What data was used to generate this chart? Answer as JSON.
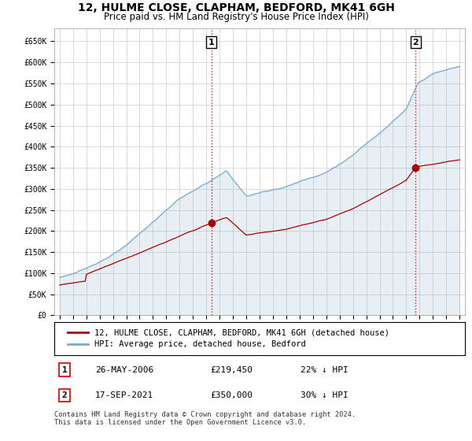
{
  "title": "12, HULME CLOSE, CLAPHAM, BEDFORD, MK41 6GH",
  "subtitle": "Price paid vs. HM Land Registry's House Price Index (HPI)",
  "ylabel_ticks": [
    "£0",
    "£50K",
    "£100K",
    "£150K",
    "£200K",
    "£250K",
    "£300K",
    "£350K",
    "£400K",
    "£450K",
    "£500K",
    "£550K",
    "£600K",
    "£650K"
  ],
  "ytick_values": [
    0,
    50000,
    100000,
    150000,
    200000,
    250000,
    300000,
    350000,
    400000,
    450000,
    500000,
    550000,
    600000,
    650000
  ],
  "ylim": [
    0,
    680000
  ],
  "legend_line1": "12, HULME CLOSE, CLAPHAM, BEDFORD, MK41 6GH (detached house)",
  "legend_line2": "HPI: Average price, detached house, Bedford",
  "sale1_label": "1",
  "sale1_date": "26-MAY-2006",
  "sale1_price": "£219,450",
  "sale1_hpi": "22% ↓ HPI",
  "sale1_year": 2006.38,
  "sale1_value": 219450,
  "sale2_label": "2",
  "sale2_date": "17-SEP-2021",
  "sale2_price": "£350,000",
  "sale2_hpi": "30% ↓ HPI",
  "sale2_year": 2021.71,
  "sale2_value": 350000,
  "red_line_color": "#aa0000",
  "blue_line_color": "#7aaacc",
  "blue_fill_color": "#ddeeff",
  "grid_color": "#cccccc",
  "background_color": "#ffffff",
  "plot_bg_color": "#ffffff",
  "footnote": "Contains HM Land Registry data © Crown copyright and database right 2024.\nThis data is licensed under the Open Government Licence v3.0.",
  "title_fontsize": 10,
  "subtitle_fontsize": 8.5,
  "tick_fontsize": 7,
  "legend_fontsize": 7.5
}
